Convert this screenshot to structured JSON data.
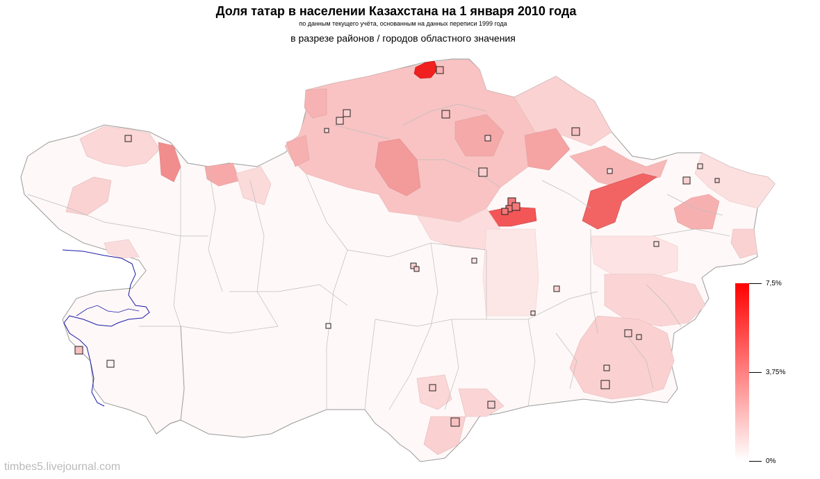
{
  "header": {
    "title": "Доля татар в населении Казахстана на 1 января 2010 года",
    "subtitle": "по данным текущего учёта, основанным на данных переписи 1999 года",
    "subtitle2": "в разрезе районов / городов областного значения"
  },
  "legend": {
    "max_label": "7,5%",
    "mid_label": "3,75%",
    "min_label": "0%",
    "max_color": "#ff0000",
    "min_color": "#ffffff"
  },
  "watermark": "timbes5.livejournal.com",
  "colors": {
    "boundary": "#bdbdbd",
    "country_outline": "#9a9a9a",
    "caspian_coast": "#1a1aa8",
    "city_marker_stroke": "#222222"
  }
}
